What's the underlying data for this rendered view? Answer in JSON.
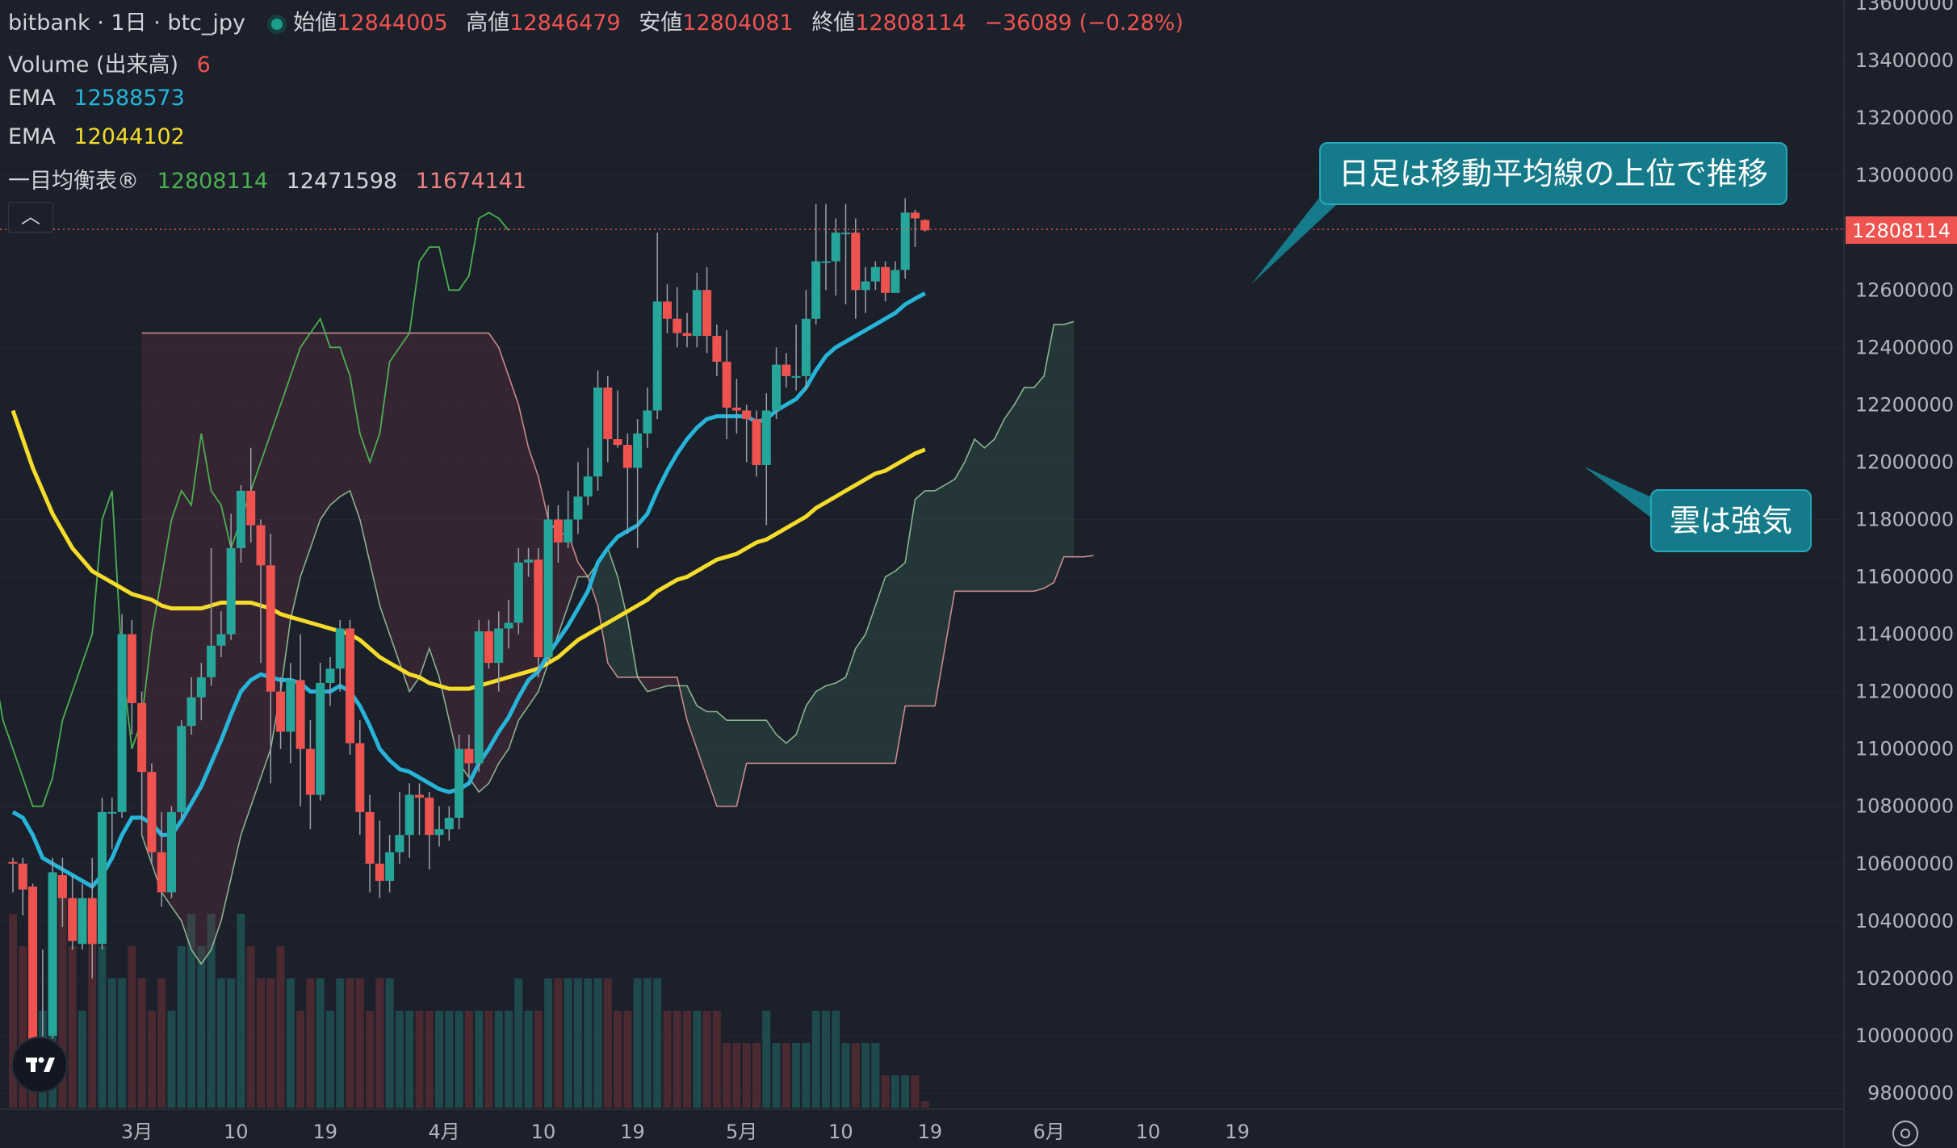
{
  "header": {
    "symbol": "bitbank · 1日 · btc_jpy",
    "open_label": "始値",
    "open": "12844005",
    "high_label": "高値",
    "high": "12846479",
    "low_label": "安値",
    "low": "12804081",
    "close_label": "終値",
    "close": "12808114",
    "change": "−36089 (−0.28%)"
  },
  "indicators": {
    "volume_label": "Volume (出来高)",
    "volume_value": "6",
    "ema1_label": "EMA",
    "ema1_value": "12588573",
    "ema2_label": "EMA",
    "ema2_value": "12044102",
    "ichimoku_label": "一目均衡表®",
    "ichimoku_v1": "12808114",
    "ichimoku_v2": "12471598",
    "ichimoku_v3": "11674141"
  },
  "callouts": {
    "trend": "日足は移動平均線の上位で推移",
    "cloud": "雲は強気"
  },
  "colors": {
    "background": "#1c202b",
    "up": "#26a69a",
    "down": "#ef5350",
    "ema_fast": "#26b5d9",
    "ema_slow": "#f5dc2a",
    "chikou": "#4caf50",
    "senkou_a": "#a5d6a7",
    "senkou_b": "#f4a4a4"
  },
  "chart_data": {
    "type": "candlestick",
    "y_ticks": [
      "13600000",
      "13400000",
      "13200000",
      "13000000",
      "12800000",
      "12600000",
      "12400000",
      "12200000",
      "12000000",
      "11800000",
      "11600000",
      "11400000",
      "11200000",
      "11000000",
      "10800000",
      "10600000",
      "10400000",
      "10200000",
      "10000000",
      "9800000"
    ],
    "ylim": [
      9750000,
      13650000
    ],
    "x_ticks": [
      "3月",
      "10",
      "19",
      "4月",
      "10",
      "19",
      "5月",
      "10",
      "19",
      "6月",
      "10",
      "19"
    ],
    "last_price": "12808114",
    "candles": [
      [
        10606000,
        10600000,
        10620000,
        10500000
      ],
      [
        10600000,
        10510000,
        10620000,
        10420000
      ],
      [
        10520000,
        9985000,
        10530000,
        9960000
      ],
      [
        9990000,
        9995000,
        10300000,
        9960000
      ],
      [
        10000000,
        10570000,
        10620000,
        9990000
      ],
      [
        10560000,
        10480000,
        10620000,
        10380000
      ],
      [
        10480000,
        10330000,
        10560000,
        10300000
      ],
      [
        10320000,
        10480000,
        10530000,
        10300000
      ],
      [
        10480000,
        10320000,
        10620000,
        10200000
      ],
      [
        10320000,
        10780000,
        10830000,
        10300000
      ],
      [
        10780000,
        10780000,
        10830000,
        10650000
      ],
      [
        10780000,
        11400000,
        11470000,
        10760000
      ],
      [
        11400000,
        11160000,
        11450000,
        11050000
      ],
      [
        11160000,
        10920000,
        11200000,
        10700000
      ],
      [
        10920000,
        10640000,
        10950000,
        10600000
      ],
      [
        10640000,
        10500000,
        10780000,
        10450000
      ],
      [
        10500000,
        10780000,
        10800000,
        10480000
      ],
      [
        10780000,
        11080000,
        11100000,
        10760000
      ],
      [
        11080000,
        11180000,
        11250000,
        11050000
      ],
      [
        11180000,
        11250000,
        11300000,
        11100000
      ],
      [
        11250000,
        11360000,
        11700000,
        11220000
      ],
      [
        11360000,
        11400000,
        11480000,
        11320000
      ],
      [
        11400000,
        11700000,
        11820000,
        11380000
      ],
      [
        11700000,
        11900000,
        11920000,
        11650000
      ],
      [
        11900000,
        11780000,
        12050000,
        11720000
      ],
      [
        11780000,
        11640000,
        11800000,
        11300000
      ],
      [
        11640000,
        11200000,
        11750000,
        10880000
      ],
      [
        11200000,
        11060000,
        11250000,
        11000000
      ],
      [
        11060000,
        11240000,
        11300000,
        10950000
      ],
      [
        11240000,
        11000000,
        11400000,
        10800000
      ],
      [
        11000000,
        10840000,
        11100000,
        10720000
      ],
      [
        10840000,
        11230000,
        11300000,
        10820000
      ],
      [
        11230000,
        11280000,
        11320000,
        11150000
      ],
      [
        11280000,
        11420000,
        11450000,
        11200000
      ],
      [
        11420000,
        11020000,
        11450000,
        10980000
      ],
      [
        11020000,
        10780000,
        11100000,
        10700000
      ],
      [
        10780000,
        10600000,
        10840000,
        10500000
      ],
      [
        10600000,
        10540000,
        10750000,
        10480000
      ],
      [
        10540000,
        10640000,
        10700000,
        10500000
      ],
      [
        10640000,
        10700000,
        10850000,
        10600000
      ],
      [
        10700000,
        10840000,
        10880000,
        10620000
      ],
      [
        10840000,
        10830000,
        10880000,
        10700000
      ],
      [
        10830000,
        10700000,
        10850000,
        10580000
      ],
      [
        10700000,
        10720000,
        10800000,
        10660000
      ],
      [
        10720000,
        10760000,
        10800000,
        10680000
      ],
      [
        10760000,
        11000000,
        11050000,
        10720000
      ],
      [
        11000000,
        10950000,
        11050000,
        10900000
      ],
      [
        10950000,
        11410000,
        11450000,
        10920000
      ],
      [
        11410000,
        11300000,
        11450000,
        11280000
      ],
      [
        11300000,
        11420000,
        11480000,
        11200000
      ],
      [
        11420000,
        11440000,
        11520000,
        11350000
      ],
      [
        11440000,
        11650000,
        11700000,
        11400000
      ],
      [
        11650000,
        11660000,
        11700000,
        11600000
      ],
      [
        11660000,
        11320000,
        11700000,
        11250000
      ],
      [
        11320000,
        11800000,
        11850000,
        11300000
      ],
      [
        11800000,
        11720000,
        11850000,
        11650000
      ],
      [
        11720000,
        11800000,
        11900000,
        11700000
      ],
      [
        11800000,
        11880000,
        12000000,
        11750000
      ],
      [
        11880000,
        11950000,
        12050000,
        11850000
      ],
      [
        11950000,
        12260000,
        12320000,
        11900000
      ],
      [
        12260000,
        12080000,
        12300000,
        12000000
      ],
      [
        12080000,
        12060000,
        12250000,
        12050000
      ],
      [
        12060000,
        11980000,
        12100000,
        11750000
      ],
      [
        11980000,
        12100000,
        12150000,
        11700000
      ],
      [
        12100000,
        12180000,
        12260000,
        12050000
      ],
      [
        12180000,
        12560000,
        12800000,
        12150000
      ],
      [
        12560000,
        12500000,
        12620000,
        12450000
      ],
      [
        12500000,
        12450000,
        12610000,
        12400000
      ],
      [
        12450000,
        12440000,
        12520000,
        12400000
      ],
      [
        12440000,
        12600000,
        12660000,
        12400000
      ],
      [
        12600000,
        12440000,
        12680000,
        12380000
      ],
      [
        12440000,
        12350000,
        12480000,
        12300000
      ],
      [
        12350000,
        12190000,
        12460000,
        12080000
      ],
      [
        12190000,
        12180000,
        12290000,
        12100000
      ],
      [
        12180000,
        12150000,
        12200000,
        12000000
      ],
      [
        12150000,
        11990000,
        12180000,
        11950000
      ],
      [
        11990000,
        12180000,
        12240000,
        11780000
      ],
      [
        12180000,
        12340000,
        12400000,
        12150000
      ],
      [
        12340000,
        12300000,
        12380000,
        12260000
      ],
      [
        12300000,
        12300000,
        12480000,
        12250000
      ],
      [
        12300000,
        12500000,
        12600000,
        12250000
      ],
      [
        12500000,
        12700000,
        12900000,
        12480000
      ],
      [
        12700000,
        12700000,
        12900000,
        12600000
      ],
      [
        12700000,
        12800000,
        12850000,
        12580000
      ],
      [
        12800000,
        12800000,
        12900000,
        12550000
      ],
      [
        12800000,
        12600000,
        12850000,
        12500000
      ],
      [
        12600000,
        12630000,
        12680000,
        12520000
      ],
      [
        12630000,
        12680000,
        12700000,
        12600000
      ],
      [
        12680000,
        12590000,
        12700000,
        12560000
      ],
      [
        12590000,
        12670000,
        12700000,
        12600000
      ],
      [
        12670000,
        12870000,
        12920000,
        12640000
      ],
      [
        12870000,
        12850000,
        12880000,
        12750000
      ],
      [
        12844005,
        12808114,
        12846479,
        12804081
      ]
    ],
    "volumes": [
      6,
      5,
      6,
      3,
      5,
      7,
      5,
      3,
      6,
      5,
      4,
      4,
      5,
      4,
      3,
      4,
      3,
      5,
      6,
      5,
      6,
      4,
      4,
      6,
      5,
      4,
      4,
      5,
      4,
      3,
      4,
      4,
      3,
      4,
      4,
      4,
      3,
      4,
      4,
      3,
      3,
      3,
      3,
      3,
      3,
      3,
      3,
      3,
      3,
      3,
      3,
      4,
      3,
      3,
      4,
      4,
      4,
      4,
      4,
      4,
      4,
      3,
      3,
      4,
      4,
      4,
      3,
      3,
      3,
      3,
      3,
      3,
      2,
      2,
      2,
      2,
      3,
      2,
      2,
      2,
      2,
      3,
      3,
      3,
      2,
      2,
      2,
      2,
      1,
      1,
      1,
      1,
      0.2
    ],
    "ema_fast": [
      10780000,
      10760000,
      10700000,
      10620000,
      10600000,
      10580000,
      10560000,
      10540000,
      10520000,
      10560000,
      10620000,
      10700000,
      10760000,
      10760000,
      10740000,
      10700000,
      10700000,
      10750000,
      10810000,
      10870000,
      10950000,
      11030000,
      11120000,
      11200000,
      11240000,
      11260000,
      11250000,
      11240000,
      11240000,
      11230000,
      11200000,
      11200000,
      11200000,
      11220000,
      11200000,
      11150000,
      11080000,
      11000000,
      10960000,
      10930000,
      10920000,
      10900000,
      10880000,
      10860000,
      10850000,
      10860000,
      10880000,
      10950000,
      11000000,
      11060000,
      11110000,
      11180000,
      11240000,
      11270000,
      11330000,
      11380000,
      11430000,
      11490000,
      11550000,
      11650000,
      11700000,
      11740000,
      11760000,
      11780000,
      11820000,
      11900000,
      11970000,
      12030000,
      12080000,
      12120000,
      12150000,
      12160000,
      12160000,
      12160000,
      12160000,
      12140000,
      12150000,
      12180000,
      12200000,
      12220000,
      12260000,
      12320000,
      12370000,
      12400000,
      12420000,
      12440000,
      12460000,
      12480000,
      12500000,
      12520000,
      12550000,
      12570000,
      12588573
    ],
    "ema_slow": [
      12180000,
      12080000,
      11980000,
      11900000,
      11820000,
      11760000,
      11700000,
      11660000,
      11620000,
      11600000,
      11580000,
      11560000,
      11540000,
      11530000,
      11520000,
      11500000,
      11490000,
      11490000,
      11490000,
      11490000,
      11500000,
      11510000,
      11510000,
      11510000,
      11510000,
      11500000,
      11490000,
      11470000,
      11460000,
      11450000,
      11440000,
      11430000,
      11420000,
      11410000,
      11400000,
      11380000,
      11350000,
      11320000,
      11300000,
      11280000,
      11260000,
      11250000,
      11230000,
      11220000,
      11210000,
      11210000,
      11210000,
      11220000,
      11230000,
      11240000,
      11250000,
      11260000,
      11270000,
      11280000,
      11300000,
      11320000,
      11350000,
      11380000,
      11400000,
      11420000,
      11440000,
      11460000,
      11480000,
      11500000,
      11520000,
      11550000,
      11570000,
      11590000,
      11600000,
      11620000,
      11640000,
      11660000,
      11670000,
      11680000,
      11700000,
      11720000,
      11730000,
      11750000,
      11770000,
      11790000,
      11810000,
      11840000,
      11860000,
      11880000,
      11900000,
      11920000,
      11940000,
      11960000,
      11970000,
      11990000,
      12010000,
      12030000,
      12044102
    ],
    "chikou": [
      11400000,
      11200000,
      11000000,
      10900000,
      10850000,
      10800000,
      10900000,
      10950000,
      11200000,
      11300000,
      11350000,
      11300000,
      11100000,
      11000000,
      10900000,
      10800000,
      10800000,
      10900000,
      11100000,
      11200000,
      11300000,
      11400000,
      11800000,
      11900000,
      11300000,
      11000000,
      11100000,
      11400000,
      11600000,
      11800000,
      11900000,
      11850000,
      12100000,
      11900000,
      11850000,
      11700000,
      11800000,
      11900000,
      12000000,
      12100000,
      12200000,
      12300000,
      12400000,
      12450000,
      12500000,
      12400000,
      12400000,
      12300000,
      12100000,
      12000000,
      12100000,
      12350000,
      12400000,
      12450000,
      12700000,
      12750000,
      12750000,
      12600000,
      12600000,
      12650000,
      12850000,
      12870000,
      12850000,
      12808114
    ],
    "senkou_a": [
      10700000,
      10600000,
      10500000,
      10450000,
      10400000,
      10300000,
      10250000,
      10300000,
      10400000,
      10550000,
      10700000,
      10800000,
      10900000,
      11000000,
      11200000,
      11450000,
      11600000,
      11700000,
      11800000,
      11850000,
      11880000,
      11900000,
      11800000,
      11650000,
      11500000,
      11400000,
      11300000,
      11200000,
      11250000,
      11350000,
      11250000,
      11100000,
      10950000,
      10900000,
      10850000,
      10880000,
      10950000,
      11000000,
      11100000,
      11150000,
      11200000,
      11300000,
      11400000,
      11500000,
      11600000,
      11600000,
      11650000,
      11700000,
      11600000,
      11450000,
      11250000,
      11200000,
      11210000,
      11220000,
      11220000,
      11220000,
      11150000,
      11130000,
      11130000,
      11100000,
      11100000,
      11100000,
      11100000,
      11100000,
      11050000,
      11020000,
      11050000,
      11150000,
      11200000,
      11220000,
      11230000,
      11250000,
      11350000,
      11400000,
      11500000,
      11600000,
      11620000,
      11650000,
      11870000,
      11900000,
      11900000,
      11920000,
      11940000,
      12000000,
      12080000,
      12050000,
      12080000,
      12150000,
      12200000,
      12260000,
      12260000,
      12300000,
      12480000,
      12480000,
      12490000
    ],
    "senkou_b": [
      12450000,
      12450000,
      12450000,
      12450000,
      12450000,
      12450000,
      12450000,
      12450000,
      12450000,
      12450000,
      12450000,
      12450000,
      12450000,
      12450000,
      12450000,
      12450000,
      12450000,
      12450000,
      12450000,
      12450000,
      12450000,
      12450000,
      12450000,
      12450000,
      12450000,
      12450000,
      12450000,
      12450000,
      12450000,
      12450000,
      12450000,
      12450000,
      12450000,
      12450000,
      12450000,
      12450000,
      12400000,
      12300000,
      12200000,
      12050000,
      11950000,
      11800000,
      11750000,
      11750000,
      11650000,
      11600000,
      11500000,
      11300000,
      11250000,
      11250000,
      11250000,
      11250000,
      11250000,
      11250000,
      11250000,
      11100000,
      11000000,
      10900000,
      10800000,
      10800000,
      10800000,
      10950000,
      10950000,
      10950000,
      10950000,
      10950000,
      10950000,
      10950000,
      10950000,
      10950000,
      10950000,
      10950000,
      10950000,
      10950000,
      10950000,
      10950000,
      10950000,
      11150000,
      11150000,
      11150000,
      11150000,
      11350000,
      11550000,
      11550000,
      11550000,
      11550000,
      11550000,
      11550000,
      11550000,
      11550000,
      11550000,
      11560000,
      11580000,
      11670000,
      11670000,
      11670000,
      11674141
    ]
  }
}
